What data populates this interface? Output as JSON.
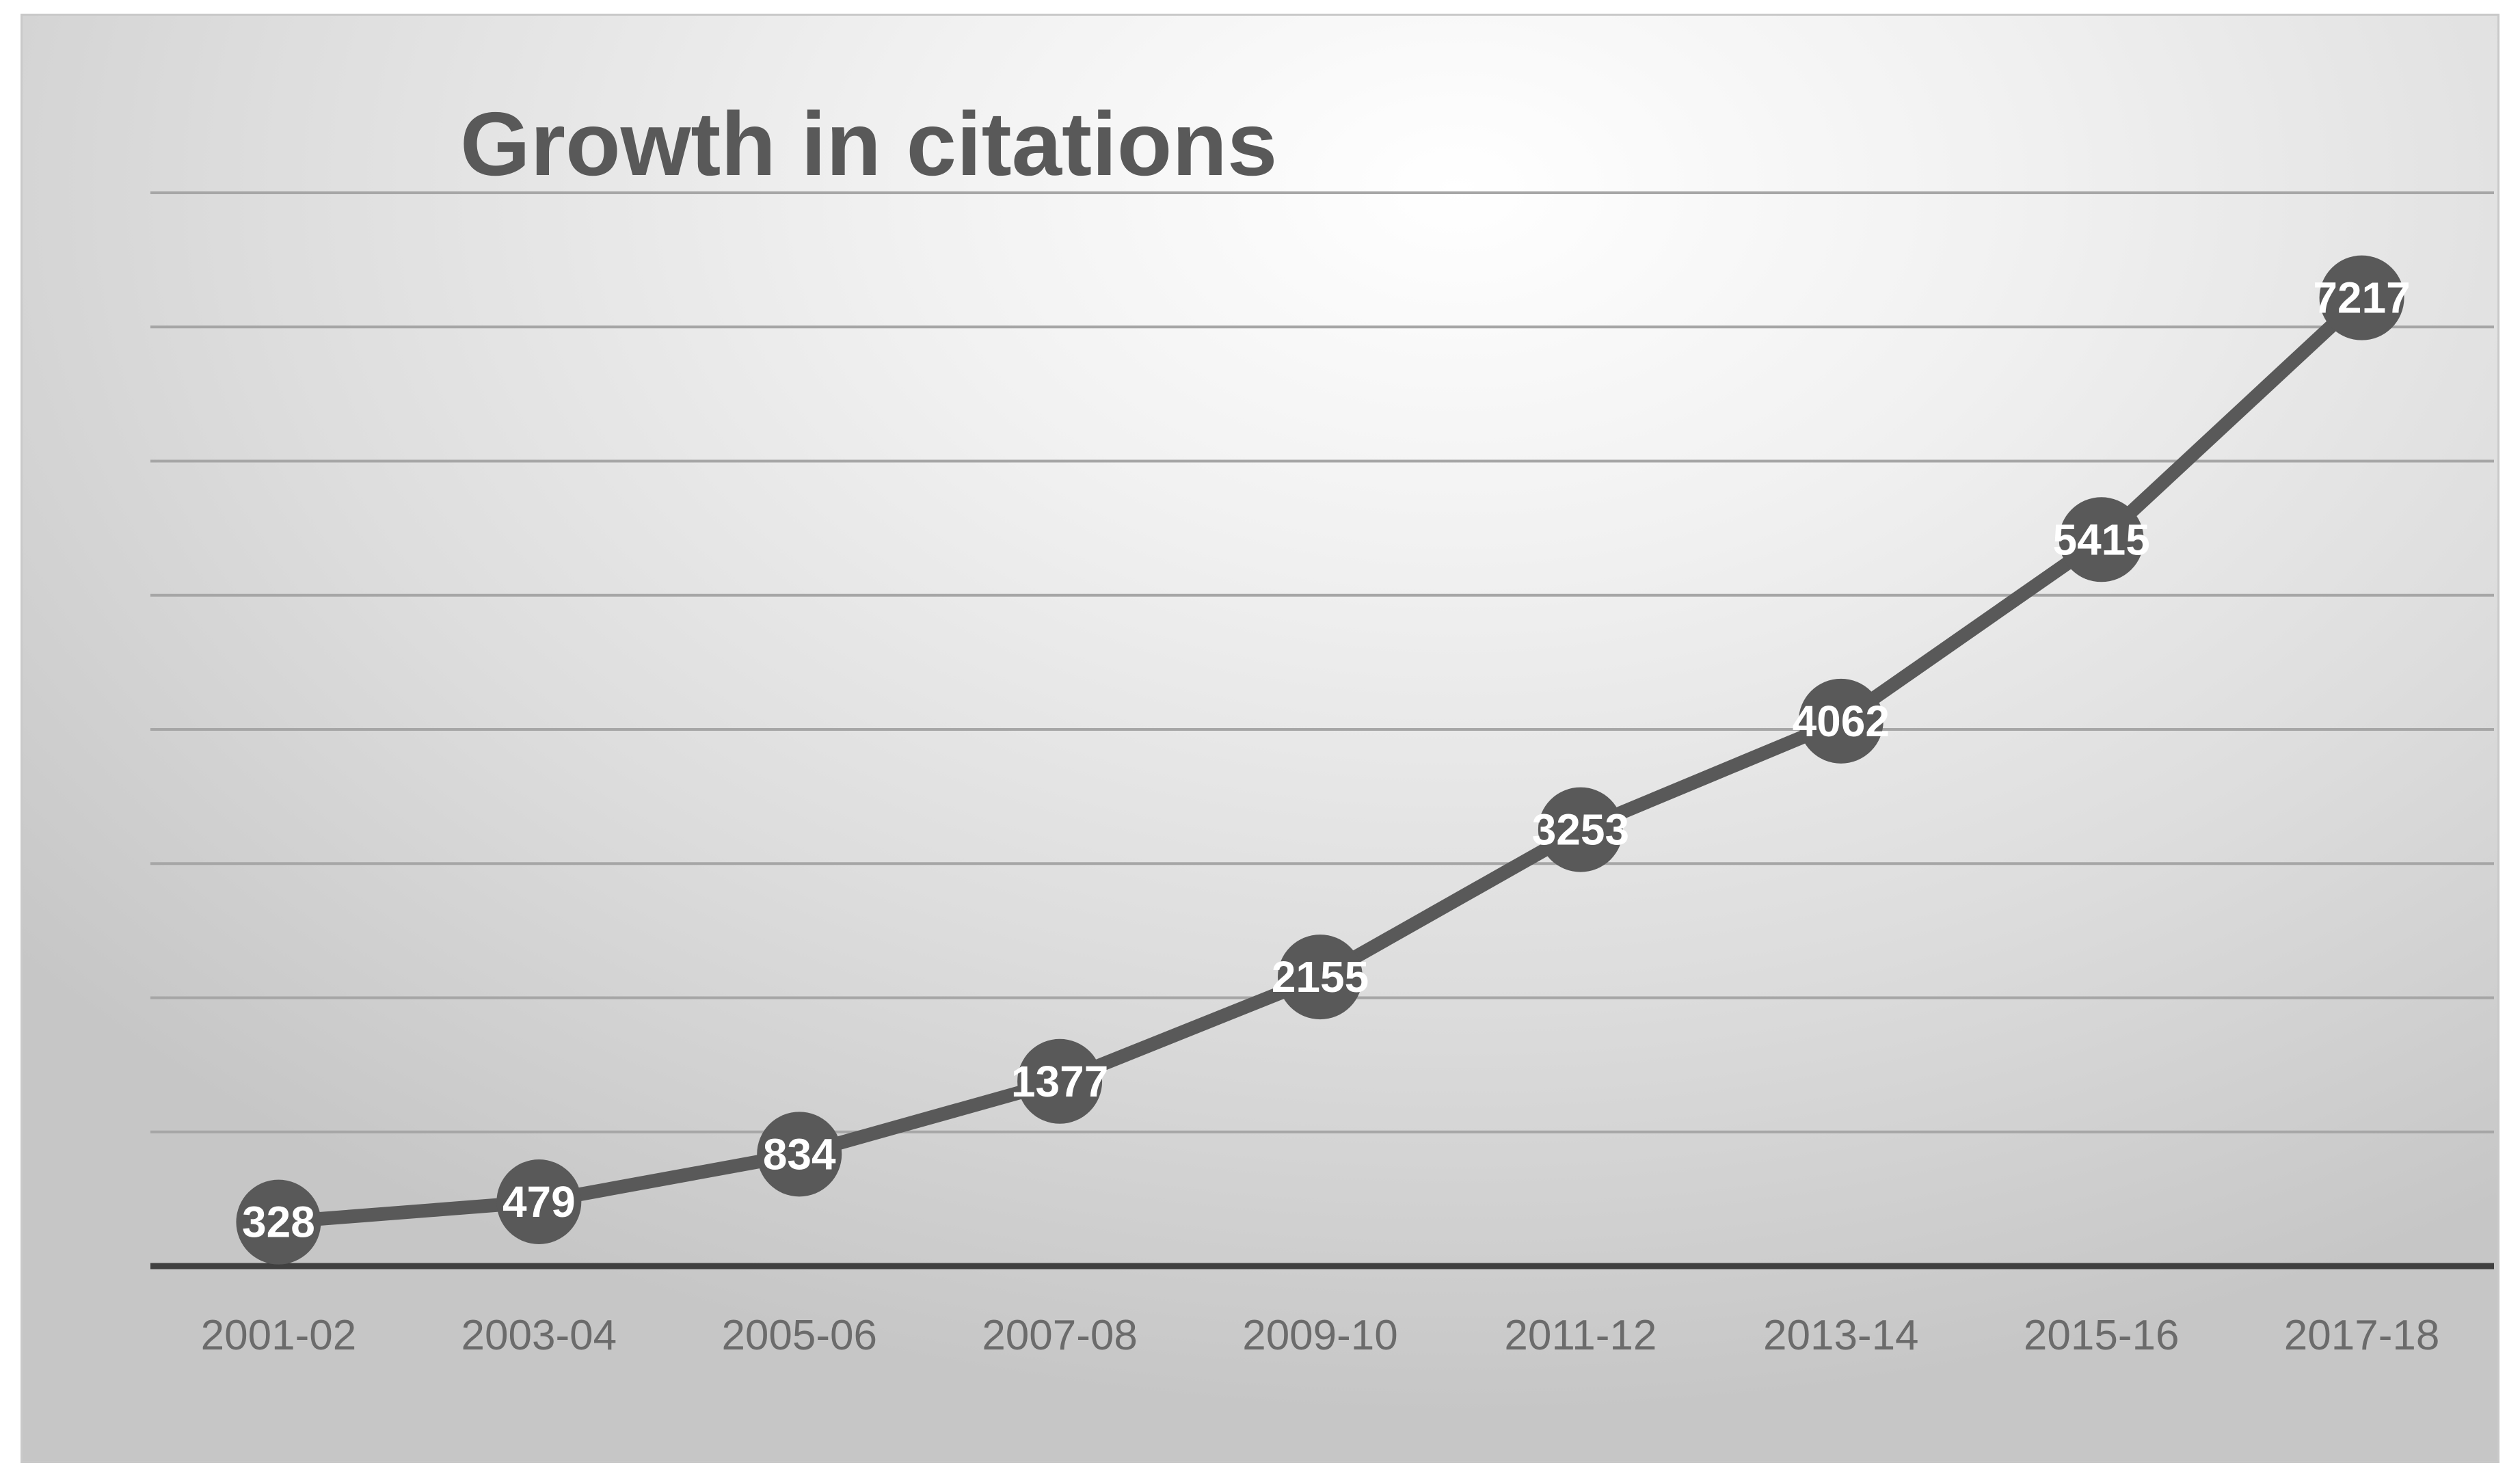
{
  "chart_data": {
    "type": "line",
    "title": "Growth in citations",
    "xlabel": "",
    "ylabel": "",
    "categories": [
      "2001-02",
      "2003-04",
      "2005-06",
      "2007-08",
      "2009-10",
      "2011-12",
      "2013-14",
      "2015-16",
      "2017-18"
    ],
    "series": [
      {
        "values": [
          328,
          479,
          834,
          1377,
          2155,
          3253,
          4062,
          5415,
          7217
        ]
      }
    ],
    "ylim": [
      0,
      8000
    ],
    "grid": true,
    "legend": "none",
    "colors": {
      "line": "#595959",
      "gridline": "#a6a6a6",
      "axis": "#404040",
      "label": "#ffffff"
    }
  }
}
